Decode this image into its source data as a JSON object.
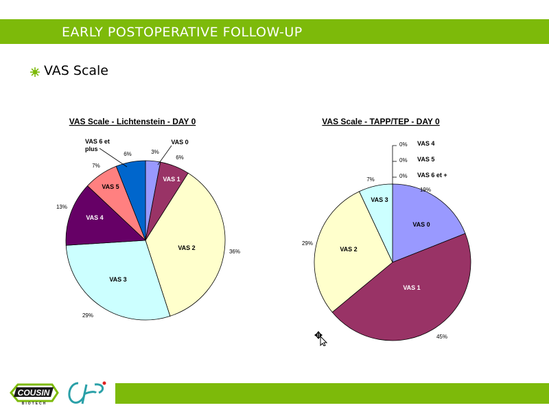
{
  "header": {
    "title": "EARLY POSTOPERATIVE FOLLOW-UP"
  },
  "bullet": {
    "text": "VAS Scale"
  },
  "chart_data": [
    {
      "type": "pie",
      "title": "VAS Scale - Lichtenstein - DAY 0",
      "categories": [
        "VAS 0",
        "VAS 1",
        "VAS 2",
        "VAS 3",
        "VAS 4",
        "VAS 5",
        "VAS 6 et plus"
      ],
      "values": [
        3,
        6,
        36,
        29,
        13,
        7,
        6
      ],
      "percent_labels": [
        "3%",
        "6%",
        "36%",
        "29%",
        "13%",
        "7%",
        "6%"
      ],
      "colors": [
        "#9999ff",
        "#993366",
        "#ffffcc",
        "#ccffff",
        "#660066",
        "#ff8080",
        "#0066cc"
      ],
      "legend": "none"
    },
    {
      "type": "pie",
      "title": "VAS Scale - TAPP/TEP - DAY 0",
      "categories": [
        "VAS 0",
        "VAS 1",
        "VAS 2",
        "VAS 3",
        "VAS 4",
        "VAS 5",
        "VAS 6 et +"
      ],
      "values": [
        19,
        45,
        29,
        7,
        0,
        0,
        0
      ],
      "percent_labels": [
        "19%",
        "45%",
        "29%",
        "7%",
        "0%",
        "0%",
        "0%"
      ],
      "colors": [
        "#9999ff",
        "#993366",
        "#ffffcc",
        "#ccffff",
        "#660066",
        "#ff8080",
        "#0066cc"
      ],
      "legend": "none"
    }
  ],
  "logos": {
    "logo1_text": "COUSIN",
    "logo1_sub": "BIOTECH"
  },
  "colors": {
    "accent": "#7dba0a"
  },
  "icons": {
    "bullet": "star-bullet-icon",
    "cursor": "move-cursor-icon"
  }
}
